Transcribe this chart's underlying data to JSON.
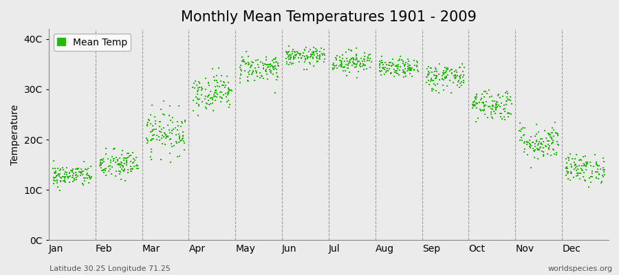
{
  "title": "Monthly Mean Temperatures 1901 - 2009",
  "ylabel": "Temperature",
  "months": [
    "Jan",
    "Feb",
    "Mar",
    "Apr",
    "May",
    "Jun",
    "Jul",
    "Aug",
    "Sep",
    "Oct",
    "Nov",
    "Dec"
  ],
  "ytick_labels": [
    "0C",
    "10C",
    "20C",
    "30C",
    "40C"
  ],
  "ytick_values": [
    0,
    10,
    20,
    30,
    40
  ],
  "ylim": [
    0,
    42
  ],
  "xlim": [
    0,
    12
  ],
  "dot_color": "#22bb00",
  "legend_label": "Mean Temp",
  "background_color": "#ebebeb",
  "footnote_left": "Latitude 30.25 Longitude 71.25",
  "footnote_right": "worldspecies.org",
  "title_fontsize": 15,
  "axis_fontsize": 10,
  "footnote_fontsize": 8,
  "years": 109,
  "monthly_mean": [
    12.8,
    15.0,
    21.5,
    29.5,
    34.2,
    36.5,
    35.5,
    34.2,
    32.5,
    27.0,
    19.5,
    14.2
  ],
  "monthly_std": [
    1.1,
    1.5,
    2.2,
    1.8,
    1.4,
    0.9,
    1.1,
    0.9,
    1.4,
    1.6,
    1.8,
    1.4
  ],
  "seed": 42,
  "dot_size": 3,
  "spread": 0.42
}
